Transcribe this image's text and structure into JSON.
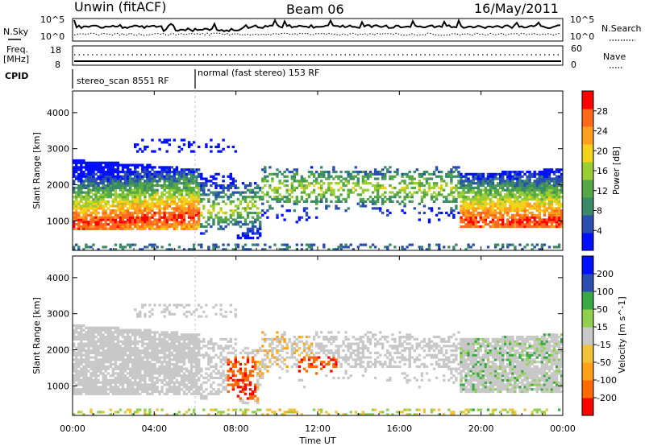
{
  "header": {
    "station": "Unwin (fitACF)",
    "beam": "Beam 06",
    "date": "16/May/2011"
  },
  "top_panel": {
    "left_label": "N.Sky",
    "right_label": "N.Search",
    "left_ticks": [
      "10^5",
      "10^0"
    ],
    "right_ticks": [
      "10^5",
      "10^0"
    ]
  },
  "freq_panel": {
    "left_label_1": "Freq.",
    "left_label_2": "[MHz]",
    "right_label": "Nave",
    "left_ticks": [
      "18",
      "8"
    ],
    "right_ticks": [
      "60",
      "0"
    ]
  },
  "cpid": {
    "label": "CPID",
    "segments": [
      {
        "text": "stereo_scan 8551 RF",
        "start_hour": 0,
        "end_hour": 6
      },
      {
        "text": "normal (fast stereo) 153 RF",
        "start_hour": 6,
        "end_hour": 24
      }
    ]
  },
  "chart_data": [
    {
      "type": "heatmap",
      "title": "",
      "parameter": "Power",
      "xlabel": "Time UT",
      "ylabel": "Slant Range [km]",
      "xlim_hours": [
        0,
        24
      ],
      "ylim": [
        180,
        4600
      ],
      "x_ticks": [
        "00:00",
        "04:00",
        "08:00",
        "12:00",
        "16:00",
        "20:00",
        "00:00"
      ],
      "y_ticks": [
        1000,
        2000,
        3000,
        4000
      ],
      "colorbar": {
        "label": "Power [dB]",
        "range": [
          0,
          32
        ],
        "ticks": [
          4,
          8,
          12,
          16,
          20,
          24,
          28
        ],
        "colors": [
          "#0010ff",
          "#2a4fb0",
          "#3a8a6a",
          "#55a845",
          "#9acd32",
          "#f2d21b",
          "#ffa01e",
          "#ff6a1a",
          "#ff0000"
        ]
      },
      "echo_regions": [
        {
          "t0": 0.0,
          "t1": 6.2,
          "r0": 700,
          "r1": 2900,
          "level": "strong, 20-28 dB near 800-1400 km"
        },
        {
          "t0": 6.2,
          "t1": 9.0,
          "r0": 500,
          "r1": 2400,
          "level": "mixed 12-24 dB"
        },
        {
          "t0": 9.0,
          "t1": 19.0,
          "r0": 1000,
          "r1": 2600,
          "level": "weak 4-16 dB"
        },
        {
          "t0": 19.0,
          "t1": 24.0,
          "r0": 700,
          "r1": 2500,
          "level": "strong, 20-28 dB near 800-1400 km"
        }
      ]
    },
    {
      "type": "heatmap",
      "title": "",
      "parameter": "Velocity",
      "xlabel": "Time UT",
      "ylabel": "Slant Range [km]",
      "xlim_hours": [
        0,
        24
      ],
      "ylim": [
        180,
        4600
      ],
      "x_ticks": [
        "00:00",
        "04:00",
        "08:00",
        "12:00",
        "16:00",
        "20:00",
        "00:00"
      ],
      "y_ticks": [
        1000,
        2000,
        3000,
        4000
      ],
      "colorbar": {
        "label": "Velocity [m s^-1]",
        "range": [
          -250,
          250
        ],
        "ticks": [
          200,
          100,
          50,
          15,
          -15,
          -50,
          -100,
          -200
        ],
        "colors": [
          "#ff0000",
          "#ff6a00",
          "#ffa21a",
          "#f2c23a",
          "#c8c8c8",
          "#8fd14f",
          "#3aa845",
          "#2a4fb0",
          "#0010ff"
        ]
      },
      "echo_regions": [
        {
          "t0": 0.0,
          "t1": 6.2,
          "r0": 700,
          "r1": 2900,
          "level": "mostly ground scatter (grey)"
        },
        {
          "t0": 7.5,
          "t1": 9.0,
          "r0": 600,
          "r1": 1800,
          "level": "-100 to -250 m/s (red)"
        },
        {
          "t0": 11.0,
          "t1": 13.0,
          "r0": 1300,
          "r1": 1800,
          "level": "-100 to -250 m/s (red)"
        },
        {
          "t0": 13.0,
          "t1": 19.0,
          "r0": 1600,
          "r1": 2600,
          "level": "mostly grey, some orange"
        },
        {
          "t0": 19.0,
          "t1": 24.0,
          "r0": 700,
          "r1": 2400,
          "level": "grey with green 15-100 m/s"
        }
      ]
    }
  ]
}
